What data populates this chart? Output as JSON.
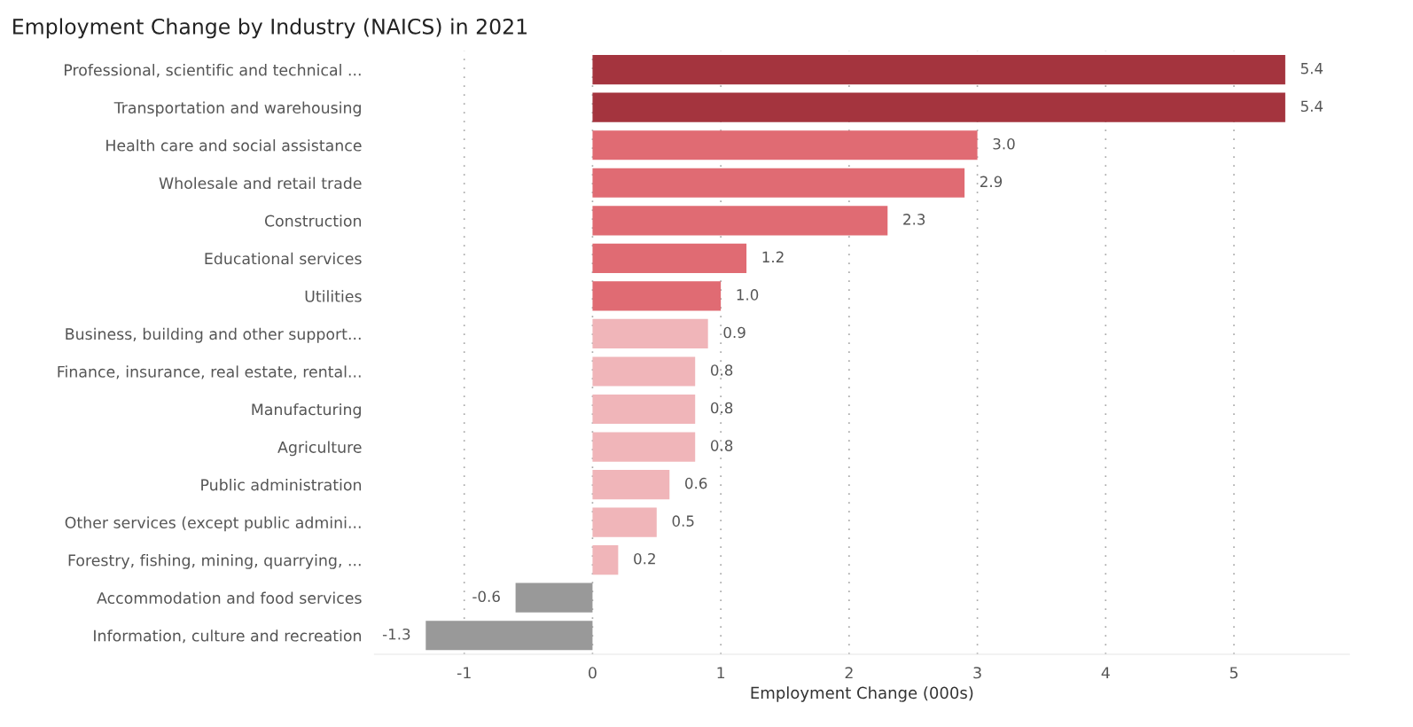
{
  "chart_data": {
    "type": "bar",
    "orientation": "horizontal",
    "title": "Employment Change by Industry (NAICS) in 2021",
    "xlabel": "Employment Change (000s)",
    "categories": [
      "Professional, scientific and technical ...",
      "Transportation and warehousing",
      "Health care and social assistance",
      "Wholesale and retail trade",
      "Construction",
      "Educational services",
      "Utilities",
      "Business, building and other support...",
      "Finance, insurance, real estate, rental...",
      "Manufacturing",
      "Agriculture",
      "Public administration",
      "Other services (except public admini...",
      "Forestry, fishing, mining, quarrying, ...",
      "Accommodation and food services",
      "Information, culture and recreation"
    ],
    "values": [
      5.4,
      5.4,
      3.0,
      2.9,
      2.3,
      1.2,
      1.0,
      0.9,
      0.8,
      0.8,
      0.8,
      0.6,
      0.5,
      0.2,
      -0.6,
      -1.3
    ],
    "colors": [
      "#a4343e",
      "#a4343e",
      "#e06b73",
      "#e06b73",
      "#e06b73",
      "#e06b73",
      "#e06b73",
      "#f0b5b9",
      "#f0b5b9",
      "#f0b5b9",
      "#f0b5b9",
      "#f0b5b9",
      "#f0b5b9",
      "#f0b5b9",
      "#999999",
      "#999999"
    ],
    "value_labels": [
      "5.4",
      "5.4",
      "3.0",
      "2.9",
      "2.3",
      "1.2",
      "1.0",
      "0.9",
      "0.8",
      "0.8",
      "0.8",
      "0.6",
      "0.5",
      "0.2",
      "-0.6",
      "-1.3"
    ],
    "xlim": [
      -1.7,
      5.9
    ],
    "xticks": [
      -1,
      0,
      1,
      2,
      3,
      4,
      5
    ],
    "grid": "x"
  }
}
